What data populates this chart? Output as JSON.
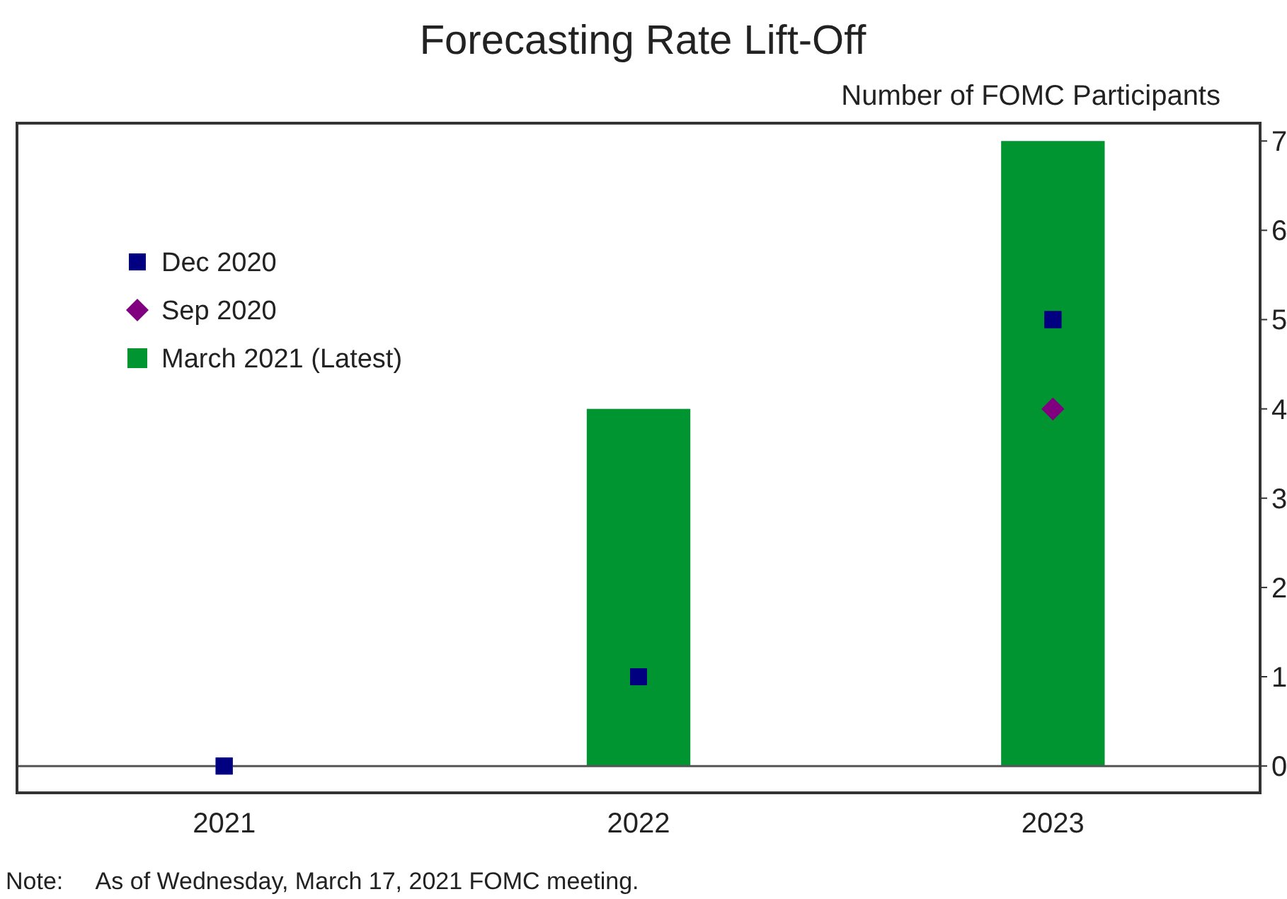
{
  "chart_data": {
    "type": "bar",
    "title": "Forecasting Rate Lift-Off",
    "ylabel": "Number of FOMC Participants",
    "annotations": [
      "Note:     As of Wednesday, March 17, 2021 FOMC meeting."
    ],
    "categories": [
      "2021",
      "2022",
      "2023"
    ],
    "series": [
      {
        "name": "Dec 2020",
        "type": "scatter",
        "marker": "square",
        "color": "#000080",
        "values": [
          0,
          1,
          5
        ]
      },
      {
        "name": "Sep 2020",
        "type": "scatter",
        "marker": "diamond",
        "color": "#800080",
        "values": [
          null,
          null,
          4
        ]
      },
      {
        "name": "March 2021 (Latest)",
        "color": "#009530",
        "values": [
          0,
          4,
          7
        ]
      }
    ],
    "ylim": [
      -0.3,
      7.2
    ],
    "yticks": [
      0,
      1,
      2,
      3,
      4,
      5,
      6,
      7
    ],
    "ref_lines": [
      {
        "axis": "y",
        "value": 0,
        "color": "#555555"
      }
    ],
    "grid": false,
    "legend": "top left"
  }
}
